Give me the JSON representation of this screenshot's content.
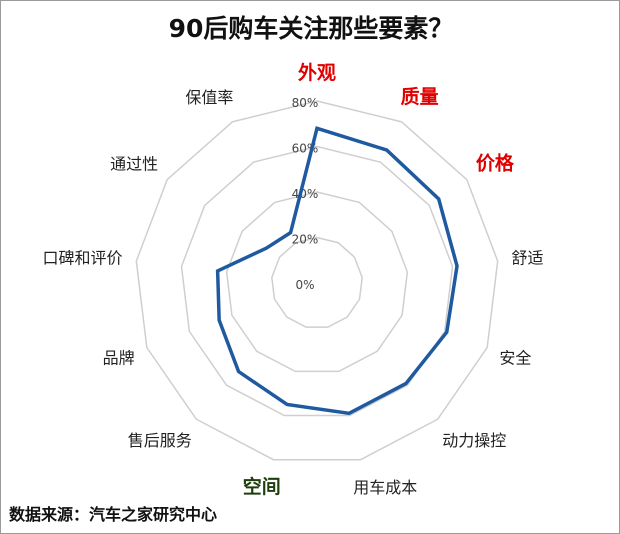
{
  "chart_data": {
    "type": "radar",
    "title": "90后购车关注那些要素？",
    "categories": [
      "外观",
      "质量",
      "价格",
      "舒适",
      "安全",
      "动力操控",
      "用车成本",
      "空间",
      "售后服务",
      "品牌",
      "口碑和评价",
      "通过性",
      "保值率"
    ],
    "values": [
      68,
      66,
      65,
      62,
      61,
      59,
      59,
      55,
      52,
      46,
      44,
      27,
      25
    ],
    "unit": "%",
    "rlim": [
      0,
      80
    ],
    "ticks": [
      "0%",
      "20%",
      "40%",
      "60%",
      "80%"
    ],
    "grid": true,
    "series_color": "#1f5aa0",
    "highlight": {
      "外观": "#e00000",
      "质量": "#e00000",
      "价格": "#e00000",
      "空间": "#1e3d0c"
    },
    "source": "数据来源：汽车之家研究中心"
  }
}
